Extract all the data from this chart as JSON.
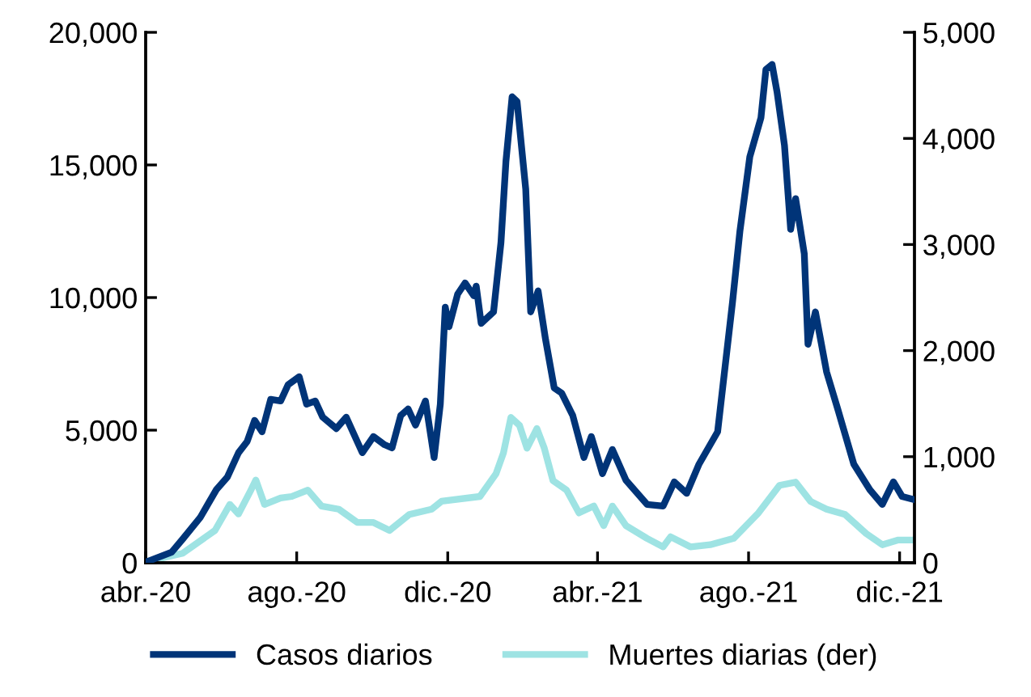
{
  "chart_data": {
    "type": "line",
    "xlim": [
      "2020-04-01",
      "2021-12-13"
    ],
    "xticks": [
      {
        "value": "2020-04-01",
        "label": "abr.-20"
      },
      {
        "value": "2020-08-01",
        "label": "ago.-20"
      },
      {
        "value": "2020-12-01",
        "label": "dic.-20"
      },
      {
        "value": "2021-04-01",
        "label": "abr.-21"
      },
      {
        "value": "2021-08-01",
        "label": "ago.-21"
      },
      {
        "value": "2021-12-01",
        "label": "dic.-21"
      }
    ],
    "ylim": [
      0,
      20000
    ],
    "yticks": [
      {
        "value": 0,
        "label": "0"
      },
      {
        "value": 5000,
        "label": "5,000"
      },
      {
        "value": 10000,
        "label": "10,000"
      },
      {
        "value": 15000,
        "label": "15,000"
      },
      {
        "value": 20000,
        "label": "20,000"
      }
    ],
    "y2lim": [
      0,
      5000
    ],
    "y2ticks": [
      {
        "value": 0,
        "label": "0"
      },
      {
        "value": 1000,
        "label": "1,000"
      },
      {
        "value": 2000,
        "label": "2,000"
      },
      {
        "value": 3000,
        "label": "3,000"
      },
      {
        "value": 4000,
        "label": "4,000"
      },
      {
        "value": 5000,
        "label": "5,000"
      }
    ],
    "grid": false,
    "legend": "bottom",
    "line_style": "solid",
    "marker": "none",
    "series": [
      {
        "name": "Casos diarios",
        "color": "#003478",
        "x": [
          "2020-04-03",
          "2020-04-22",
          "2020-05-01",
          "2020-05-15",
          "2020-05-28",
          "2020-06-06",
          "2020-06-15",
          "2020-06-22",
          "2020-06-28",
          "2020-07-04",
          "2020-07-11",
          "2020-07-19",
          "2020-07-25",
          "2020-08-03",
          "2020-08-09",
          "2020-08-16",
          "2020-08-22",
          "2020-09-02",
          "2020-09-10",
          "2020-09-23",
          "2020-10-02",
          "2020-10-11",
          "2020-10-17",
          "2020-10-24",
          "2020-10-30",
          "2020-11-05",
          "2020-11-13",
          "2020-11-20",
          "2020-11-25",
          "2020-11-29",
          "2020-12-02",
          "2020-12-09",
          "2020-12-15",
          "2020-12-22",
          "2020-12-24",
          "2020-12-28",
          "2021-01-07",
          "2021-01-13",
          "2021-01-17",
          "2021-01-22",
          "2021-01-26",
          "2021-02-02",
          "2021-02-06",
          "2021-02-12",
          "2021-02-18",
          "2021-02-25",
          "2021-03-03",
          "2021-03-12",
          "2021-03-21",
          "2021-03-27",
          "2021-04-05",
          "2021-04-13",
          "2021-04-24",
          "2021-05-11",
          "2021-05-24",
          "2021-06-02",
          "2021-06-12",
          "2021-06-22",
          "2021-07-07",
          "2021-07-19",
          "2021-07-25",
          "2021-08-02",
          "2021-08-11",
          "2021-08-15",
          "2021-08-20",
          "2021-08-24",
          "2021-08-30",
          "2021-09-04",
          "2021-09-08",
          "2021-09-15",
          "2021-09-18",
          "2021-09-24",
          "2021-10-03",
          "2021-10-12",
          "2021-10-25",
          "2021-11-07",
          "2021-11-17",
          "2021-11-26",
          "2021-12-03",
          "2021-12-13"
        ],
        "values": [
          60,
          400,
          900,
          1700,
          2750,
          3230,
          4150,
          4575,
          5370,
          4940,
          6160,
          6100,
          6710,
          7015,
          5980,
          6100,
          5490,
          5060,
          5490,
          4150,
          4760,
          4450,
          4330,
          5550,
          5800,
          5190,
          6100,
          3970,
          5980,
          9640,
          8900,
          10130,
          10550,
          10070,
          10430,
          9030,
          9460,
          12080,
          15130,
          17570,
          17390,
          14090,
          9460,
          10250,
          8420,
          6590,
          6400,
          5550,
          3970,
          4760,
          3360,
          4270,
          3110,
          2200,
          2140,
          3050,
          2620,
          3720,
          4940,
          9820,
          12500,
          15310,
          16780,
          18600,
          18790,
          17750,
          15740,
          12570,
          13730,
          11650,
          8240,
          9460,
          7200,
          5800,
          3720,
          2750,
          2200,
          3050,
          2500,
          2380
        ]
      },
      {
        "name": "Muertes diarias (der)",
        "color": "#9ee3e3",
        "axis": "y2",
        "x": [
          "2020-04-03",
          "2020-05-01",
          "2020-05-27",
          "2020-06-08",
          "2020-06-15",
          "2020-06-25",
          "2020-06-29",
          "2020-07-06",
          "2020-07-19",
          "2020-07-28",
          "2020-08-10",
          "2020-08-21",
          "2020-09-04",
          "2020-09-19",
          "2020-10-02",
          "2020-10-15",
          "2020-10-31",
          "2020-11-18",
          "2020-11-26",
          "2020-12-27",
          "2021-01-09",
          "2021-01-15",
          "2021-01-21",
          "2021-01-28",
          "2021-02-03",
          "2021-02-11",
          "2021-02-17",
          "2021-02-24",
          "2021-03-07",
          "2021-03-17",
          "2021-03-29",
          "2021-04-06",
          "2021-04-13",
          "2021-04-24",
          "2021-05-11",
          "2021-05-24",
          "2021-05-30",
          "2021-06-15",
          "2021-07-01",
          "2021-07-20",
          "2021-08-09",
          "2021-08-26",
          "2021-09-08",
          "2021-09-20",
          "2021-10-03",
          "2021-10-18",
          "2021-11-04",
          "2021-11-17",
          "2021-11-30",
          "2021-12-13"
        ],
        "values": [
          15,
          90,
          305,
          550,
          460,
          685,
          780,
          550,
          610,
          625,
          685,
          535,
          505,
          380,
          380,
          305,
          455,
          505,
          580,
          625,
          840,
          1035,
          1370,
          1295,
          1080,
          1265,
          1080,
          775,
          685,
          470,
          535,
          350,
          535,
          350,
          230,
          150,
          245,
          150,
          170,
          230,
          470,
          730,
          760,
          580,
          505,
          455,
          275,
          170,
          215,
          215
        ]
      }
    ]
  }
}
